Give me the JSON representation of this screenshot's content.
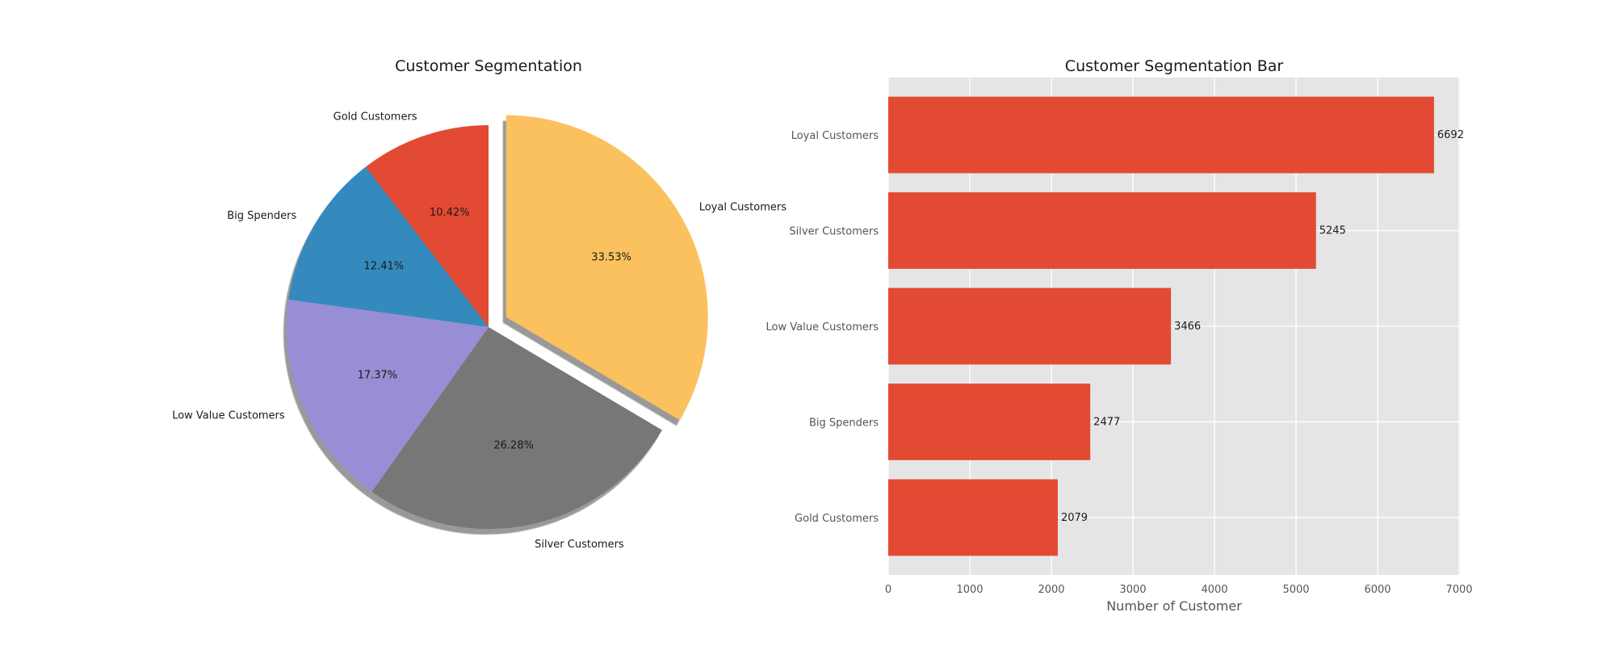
{
  "chart_data": [
    {
      "type": "pie",
      "title": "Customer Segmentation",
      "labels": [
        "Loyal Customers",
        "Silver Customers",
        "Low Value Customers",
        "Big Spenders",
        "Gold Customers"
      ],
      "values": [
        6692,
        5245,
        3466,
        2477,
        2079
      ],
      "percent_labels": [
        "33.53%",
        "26.28%",
        "17.37%",
        "12.41%",
        "10.42%"
      ],
      "colors": [
        "#FBC15E",
        "#777777",
        "#988ED5",
        "#348ABD",
        "#E24A33"
      ],
      "exploded": [
        "Loyal Customers"
      ],
      "shadow": true,
      "start_angle_deg": 90,
      "direction": "clockwise"
    },
    {
      "type": "bar",
      "orientation": "horizontal",
      "title": "Customer Segmentation Bar",
      "categories": [
        "Loyal Customers",
        "Silver Customers",
        "Low Value Customers",
        "Big Spenders",
        "Gold Customers"
      ],
      "values": [
        6692,
        5245,
        3466,
        2477,
        2079
      ],
      "data_labels": [
        "6692",
        "5245",
        "3466",
        "2477",
        "2079"
      ],
      "xlabel": "Number of Customer",
      "ylabel": "",
      "xlim": [
        0,
        7000
      ],
      "xticks": [
        "0",
        "1000",
        "2000",
        "3000",
        "4000",
        "5000",
        "6000",
        "7000"
      ],
      "bar_color": "#E24A33",
      "background": "#E5E5E5",
      "grid": true
    }
  ]
}
